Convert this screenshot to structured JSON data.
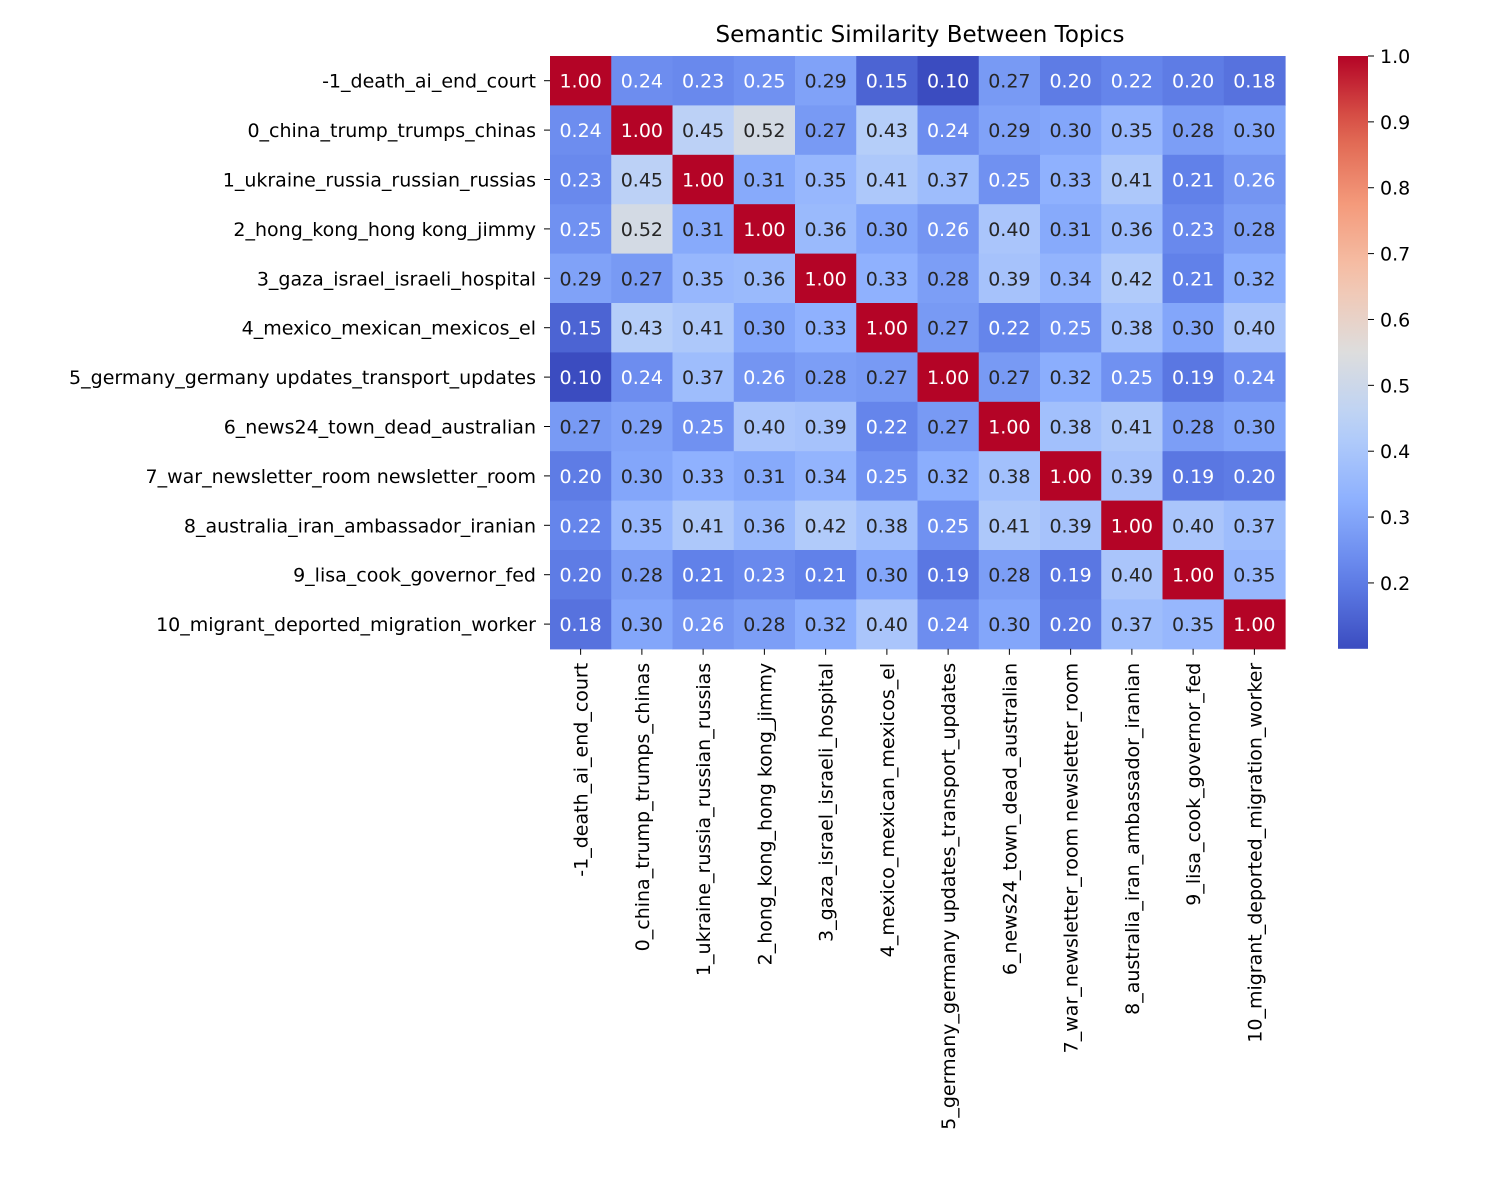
{
  "chart_data": {
    "type": "heatmap",
    "title": "Semantic Similarity Between Topics",
    "row_labels": [
      "-1_death_ai_end_court",
      "0_china_trump_trumps_chinas",
      "1_ukraine_russia_russian_russias",
      "2_hong_kong_hong kong_jimmy",
      "3_gaza_israel_israeli_hospital",
      "4_mexico_mexican_mexicos_el",
      "5_germany_germany updates_transport_updates",
      "6_news24_town_dead_australian",
      "7_war_newsletter_room newsletter_room",
      "8_australia_iran_ambassador_iranian",
      "9_lisa_cook_governor_fed",
      "10_migrant_deported_migration_worker"
    ],
    "col_labels": [
      "-1_death_ai_end_court",
      "0_china_trump_trumps_chinas",
      "1_ukraine_russia_russian_russias",
      "2_hong_kong_hong kong_jimmy",
      "3_gaza_israel_israeli_hospital",
      "4_mexico_mexican_mexicos_el",
      "5_germany_germany updates_transport_updates",
      "6_news24_town_dead_australian",
      "7_war_newsletter_room newsletter_room",
      "8_australia_iran_ambassador_iranian",
      "9_lisa_cook_governor_fed",
      "10_migrant_deported_migration_worker"
    ],
    "values": [
      [
        1.0,
        0.24,
        0.23,
        0.25,
        0.29,
        0.15,
        0.1,
        0.27,
        0.2,
        0.22,
        0.2,
        0.18
      ],
      [
        0.24,
        1.0,
        0.45,
        0.52,
        0.27,
        0.43,
        0.24,
        0.29,
        0.3,
        0.35,
        0.28,
        0.3
      ],
      [
        0.23,
        0.45,
        1.0,
        0.31,
        0.35,
        0.41,
        0.37,
        0.25,
        0.33,
        0.41,
        0.21,
        0.26
      ],
      [
        0.25,
        0.52,
        0.31,
        1.0,
        0.36,
        0.3,
        0.26,
        0.4,
        0.31,
        0.36,
        0.23,
        0.28
      ],
      [
        0.29,
        0.27,
        0.35,
        0.36,
        1.0,
        0.33,
        0.28,
        0.39,
        0.34,
        0.42,
        0.21,
        0.32
      ],
      [
        0.15,
        0.43,
        0.41,
        0.3,
        0.33,
        1.0,
        0.27,
        0.22,
        0.25,
        0.38,
        0.3,
        0.4
      ],
      [
        0.1,
        0.24,
        0.37,
        0.26,
        0.28,
        0.27,
        1.0,
        0.27,
        0.32,
        0.25,
        0.19,
        0.24
      ],
      [
        0.27,
        0.29,
        0.25,
        0.4,
        0.39,
        0.22,
        0.27,
        1.0,
        0.38,
        0.41,
        0.28,
        0.3
      ],
      [
        0.2,
        0.3,
        0.33,
        0.31,
        0.34,
        0.25,
        0.32,
        0.38,
        1.0,
        0.39,
        0.19,
        0.2
      ],
      [
        0.22,
        0.35,
        0.41,
        0.36,
        0.42,
        0.38,
        0.25,
        0.41,
        0.39,
        1.0,
        0.4,
        0.37
      ],
      [
        0.2,
        0.28,
        0.21,
        0.23,
        0.21,
        0.3,
        0.19,
        0.28,
        0.19,
        0.4,
        1.0,
        0.35
      ],
      [
        0.18,
        0.3,
        0.26,
        0.28,
        0.32,
        0.4,
        0.24,
        0.3,
        0.2,
        0.37,
        0.35,
        1.0
      ]
    ],
    "colormap": "coolwarm",
    "value_range": [
      0.1,
      1.0
    ],
    "colorbar_ticks": [
      "0.2",
      "0.3",
      "0.4",
      "0.5",
      "0.6",
      "0.7",
      "0.8",
      "0.9",
      "1.0"
    ],
    "annotation_format": "0.00",
    "grid": false,
    "legend": "colorbar-right"
  }
}
